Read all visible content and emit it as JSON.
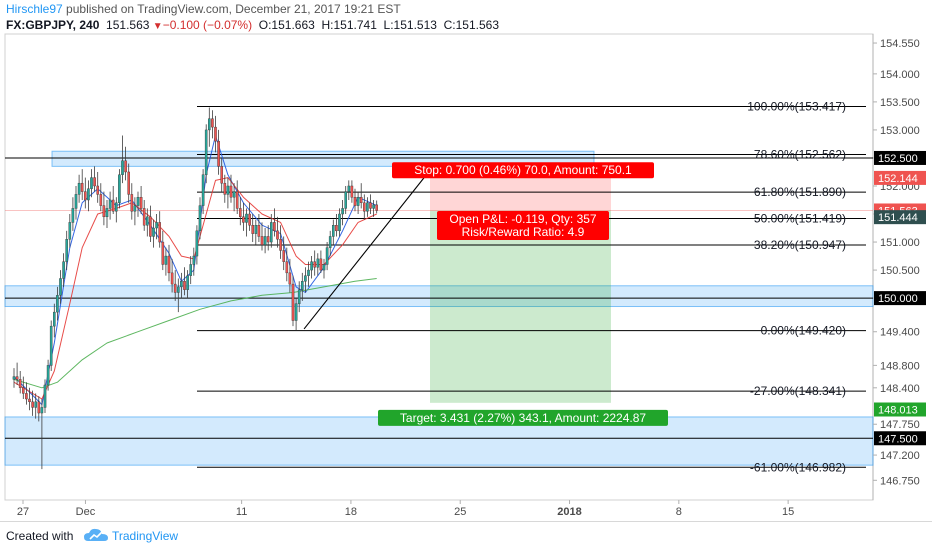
{
  "header": {
    "author": "Hirschle97",
    "published": "published on TradingView.com, December 21, 2017 19:21 EST",
    "symbol": "FX:GBPJPY, 240",
    "last": "151.563",
    "change": "−0.100 (−0.07%)",
    "open": "O:151.663",
    "high": "H:151.741",
    "low": "L:151.513",
    "close": "C:151.563"
  },
  "footer": {
    "created_with": "Created with",
    "brand": "TradingView"
  },
  "colors": {
    "bull": "#26a69a",
    "bear": "#ef5350",
    "fib": "#000000",
    "zone": "#2196f3",
    "ema_fast": "#1e55e0",
    "ema_slow": "#e53935",
    "sma": "#4caf50",
    "stop": "#ff0000",
    "target": "#21a52b"
  },
  "chart_data": {
    "type": "candlestick",
    "instrument": "FX:GBPJPY",
    "timeframe": "240",
    "ylim": [
      146.55,
      154.65
    ],
    "y_ticks": [
      "154.550",
      "154.000",
      "153.500",
      "153.000",
      "152.500",
      "152.000",
      "151.500",
      "151.000",
      "150.500",
      "150.000",
      "149.400",
      "148.800",
      "148.400",
      "147.750",
      "147.200",
      "146.750"
    ],
    "x_ticks": [
      "27",
      "Dec",
      "11",
      "18",
      "25",
      "2018",
      "8",
      "15"
    ],
    "x_tick_dates": [
      "2017-11-27",
      "2017-12-01",
      "2017-12-11",
      "2017-12-18",
      "2017-12-25",
      "2018-01-01",
      "2018-01-08",
      "2018-01-15"
    ],
    "fibonacci": [
      {
        "label": "100.00%(153.417)",
        "price": 153.417
      },
      {
        "label": "78.60%(152.562)",
        "price": 152.562
      },
      {
        "label": "61.80%(151.890)",
        "price": 151.89
      },
      {
        "label": "50.00%(151.419)",
        "price": 151.419
      },
      {
        "label": "38.20%(150.947)",
        "price": 150.947
      },
      {
        "label": "0.00%(149.420)",
        "price": 149.42
      },
      {
        "label": "-27.00%(148.341)",
        "price": 148.341
      },
      {
        "label": "-61.00%(146.982)",
        "price": 146.982
      }
    ],
    "zones": [
      [
        152.35,
        152.62
      ],
      [
        149.85,
        150.22
      ],
      [
        147.02,
        147.88
      ]
    ],
    "horizontal_lines": [
      152.5,
      150.0,
      147.5
    ],
    "price_labels": [
      {
        "text": "152.500",
        "price": 152.5,
        "color": "#000000"
      },
      {
        "text": "152.144",
        "price": 152.144,
        "color": "#ef5350"
      },
      {
        "text": "151.563",
        "price": 151.563,
        "color": "#ef5350"
      },
      {
        "text": "151.444",
        "price": 151.444,
        "color": "#2f4f4f"
      },
      {
        "text": "150.000",
        "price": 150.0,
        "color": "#000000"
      },
      {
        "text": "148.013",
        "price": 148.013,
        "color": "#21a52b"
      },
      {
        "text": "147.500",
        "price": 147.5,
        "color": "#000000"
      }
    ],
    "position": {
      "type": "long",
      "entry": 151.563,
      "stop": 152.263,
      "target": 148.132,
      "stop_label": "Stop: 0.700 (0.46%) 70.0, Amount: 750.1",
      "open_pl_label": "Open P&L: -0.119, Qty: 357",
      "rr_label": "Risk/Reward Ratio: 4.9",
      "target_label": "Target: 3.431 (2.27%) 343.1, Amount: 2224.87"
    },
    "trendline": {
      "from": [
        "2017-12-15",
        149.45
      ],
      "to": [
        "2017-12-22",
        152.2
      ]
    },
    "candles": [
      [
        "2017-11-24 08:00",
        148.55,
        148.75,
        148.4,
        148.6
      ],
      [
        "2017-11-24 12:00",
        148.6,
        148.85,
        148.45,
        148.55
      ],
      [
        "2017-11-24 16:00",
        148.55,
        148.7,
        148.3,
        148.4
      ],
      [
        "2017-11-26 20:00",
        148.4,
        148.6,
        148.2,
        148.3
      ],
      [
        "2017-11-27 00:00",
        148.3,
        148.5,
        148.1,
        148.2
      ],
      [
        "2017-11-27 04:00",
        148.2,
        148.4,
        148.0,
        148.15
      ],
      [
        "2017-11-27 08:00",
        148.15,
        148.35,
        147.9,
        148.05
      ],
      [
        "2017-11-27 12:00",
        148.05,
        148.3,
        147.85,
        148.15
      ],
      [
        "2017-11-27 16:00",
        148.15,
        148.25,
        147.8,
        147.95
      ],
      [
        "2017-11-27 20:00",
        147.95,
        148.2,
        146.95,
        148.05
      ],
      [
        "2017-11-28 00:00",
        148.05,
        148.55,
        147.95,
        148.45
      ],
      [
        "2017-11-28 04:00",
        148.45,
        148.9,
        148.35,
        148.8
      ],
      [
        "2017-11-28 08:00",
        148.8,
        149.6,
        148.7,
        149.5
      ],
      [
        "2017-11-28 12:00",
        149.5,
        149.9,
        149.3,
        149.75
      ],
      [
        "2017-11-28 16:00",
        149.75,
        150.2,
        149.6,
        150.05
      ],
      [
        "2017-11-28 20:00",
        150.05,
        150.5,
        149.9,
        150.35
      ],
      [
        "2017-11-29 00:00",
        150.35,
        150.8,
        150.2,
        150.65
      ],
      [
        "2017-11-29 04:00",
        150.65,
        151.2,
        150.5,
        151.05
      ],
      [
        "2017-11-29 08:00",
        151.05,
        151.5,
        150.9,
        151.35
      ],
      [
        "2017-11-29 12:00",
        151.35,
        151.8,
        151.2,
        151.6
      ],
      [
        "2017-11-29 16:00",
        151.6,
        152.0,
        151.4,
        151.85
      ],
      [
        "2017-11-29 20:00",
        151.85,
        152.2,
        151.7,
        152.05
      ],
      [
        "2017-11-30 00:00",
        152.05,
        152.3,
        151.75,
        151.9
      ],
      [
        "2017-11-30 04:00",
        151.9,
        152.15,
        151.6,
        151.75
      ],
      [
        "2017-11-30 08:00",
        151.75,
        152.1,
        151.55,
        151.95
      ],
      [
        "2017-11-30 12:00",
        151.95,
        152.3,
        151.8,
        152.15
      ],
      [
        "2017-11-30 16:00",
        152.15,
        152.35,
        151.9,
        152.0
      ],
      [
        "2017-11-30 20:00",
        152.0,
        152.25,
        151.7,
        151.85
      ],
      [
        "2017-12-01 00:00",
        151.85,
        152.05,
        151.55,
        151.65
      ],
      [
        "2017-12-01 04:00",
        151.65,
        151.9,
        151.3,
        151.45
      ],
      [
        "2017-12-01 08:00",
        151.45,
        151.75,
        151.25,
        151.6
      ],
      [
        "2017-12-01 12:00",
        151.6,
        151.9,
        151.4,
        151.75
      ],
      [
        "2017-12-01 16:00",
        151.75,
        152.0,
        151.5,
        151.55
      ],
      [
        "2017-12-01 20:00",
        151.55,
        151.8,
        151.35,
        151.7
      ],
      [
        "2017-12-03 20:00",
        151.7,
        152.3,
        151.6,
        152.2
      ],
      [
        "2017-12-04 00:00",
        152.2,
        152.9,
        152.05,
        152.45
      ],
      [
        "2017-12-04 04:00",
        152.45,
        152.7,
        152.1,
        152.25
      ],
      [
        "2017-12-04 08:00",
        152.25,
        152.4,
        151.7,
        151.85
      ],
      [
        "2017-12-04 12:00",
        151.85,
        152.05,
        151.4,
        151.55
      ],
      [
        "2017-12-04 16:00",
        151.55,
        151.8,
        151.3,
        151.65
      ],
      [
        "2017-12-04 20:00",
        151.65,
        151.9,
        151.45,
        151.8
      ],
      [
        "2017-12-05 00:00",
        151.8,
        152.0,
        151.5,
        151.6
      ],
      [
        "2017-12-05 04:00",
        151.6,
        151.75,
        151.2,
        151.3
      ],
      [
        "2017-12-05 08:00",
        151.3,
        151.6,
        151.1,
        151.45
      ],
      [
        "2017-12-05 12:00",
        151.45,
        151.65,
        151.0,
        151.1
      ],
      [
        "2017-12-05 16:00",
        151.1,
        151.4,
        150.9,
        151.25
      ],
      [
        "2017-12-05 20:00",
        151.25,
        151.5,
        151.05,
        151.35
      ],
      [
        "2017-12-06 00:00",
        151.35,
        151.55,
        150.9,
        151.0
      ],
      [
        "2017-12-06 04:00",
        151.0,
        151.2,
        150.5,
        150.6
      ],
      [
        "2017-12-06 08:00",
        150.6,
        150.9,
        150.4,
        150.75
      ],
      [
        "2017-12-06 12:00",
        150.75,
        150.95,
        150.3,
        150.45
      ],
      [
        "2017-12-06 16:00",
        150.45,
        150.7,
        150.1,
        150.25
      ],
      [
        "2017-12-06 20:00",
        150.25,
        150.5,
        149.95,
        150.1
      ],
      [
        "2017-12-07 00:00",
        150.1,
        150.35,
        149.75,
        150.2
      ],
      [
        "2017-12-07 04:00",
        150.2,
        150.45,
        150.0,
        150.3
      ],
      [
        "2017-12-07 08:00",
        150.3,
        150.55,
        150.05,
        150.15
      ],
      [
        "2017-12-07 12:00",
        150.15,
        150.5,
        150.0,
        150.4
      ],
      [
        "2017-12-07 16:00",
        150.4,
        150.75,
        150.25,
        150.6
      ],
      [
        "2017-12-07 20:00",
        150.6,
        150.9,
        150.4,
        150.75
      ],
      [
        "2017-12-08 00:00",
        150.75,
        151.3,
        150.6,
        151.2
      ],
      [
        "2017-12-08 04:00",
        151.2,
        151.8,
        151.05,
        151.65
      ],
      [
        "2017-12-08 08:00",
        151.65,
        152.3,
        151.5,
        152.2
      ],
      [
        "2017-12-08 12:00",
        152.2,
        153.1,
        152.05,
        153.0
      ],
      [
        "2017-12-08 16:00",
        153.0,
        153.4,
        152.7,
        153.2
      ],
      [
        "2017-12-08 20:00",
        153.2,
        153.35,
        152.85,
        153.05
      ],
      [
        "2017-12-10 20:00",
        153.05,
        153.25,
        152.6,
        152.8
      ],
      [
        "2017-12-11 00:00",
        152.8,
        153.0,
        152.2,
        152.35
      ],
      [
        "2017-12-11 04:00",
        152.35,
        152.5,
        151.9,
        152.05
      ],
      [
        "2017-12-11 08:00",
        152.05,
        152.2,
        151.7,
        151.85
      ],
      [
        "2017-12-11 12:00",
        151.85,
        152.15,
        151.6,
        152.0
      ],
      [
        "2017-12-11 16:00",
        152.0,
        152.2,
        151.7,
        151.8
      ],
      [
        "2017-12-11 20:00",
        151.8,
        152.05,
        151.55,
        151.9
      ],
      [
        "2017-12-12 00:00",
        151.9,
        152.1,
        151.5,
        151.6
      ],
      [
        "2017-12-12 04:00",
        151.6,
        151.8,
        151.3,
        151.45
      ],
      [
        "2017-12-12 08:00",
        151.45,
        151.7,
        151.2,
        151.35
      ],
      [
        "2017-12-12 12:00",
        151.35,
        151.6,
        151.1,
        151.5
      ],
      [
        "2017-12-12 16:00",
        151.5,
        151.7,
        151.2,
        151.3
      ],
      [
        "2017-12-12 20:00",
        151.3,
        151.5,
        151.0,
        151.15
      ],
      [
        "2017-12-13 00:00",
        151.15,
        151.4,
        150.95,
        151.3
      ],
      [
        "2017-12-13 04:00",
        151.3,
        151.5,
        151.0,
        151.1
      ],
      [
        "2017-12-13 08:00",
        151.1,
        151.35,
        150.85,
        150.95
      ],
      [
        "2017-12-13 12:00",
        150.95,
        151.25,
        150.8,
        151.1
      ],
      [
        "2017-12-13 16:00",
        151.1,
        151.3,
        150.85,
        151.0
      ],
      [
        "2017-12-13 20:00",
        151.0,
        151.5,
        150.9,
        151.35
      ],
      [
        "2017-12-14 00:00",
        151.35,
        151.6,
        151.1,
        151.2
      ],
      [
        "2017-12-14 04:00",
        151.2,
        151.45,
        150.9,
        151.05
      ],
      [
        "2017-12-14 08:00",
        151.05,
        151.3,
        150.7,
        150.85
      ],
      [
        "2017-12-14 12:00",
        150.85,
        151.1,
        150.5,
        150.65
      ],
      [
        "2017-12-14 16:00",
        150.65,
        150.9,
        150.3,
        150.45
      ],
      [
        "2017-12-14 20:00",
        150.45,
        150.7,
        150.1,
        150.25
      ],
      [
        "2017-12-15 00:00",
        150.25,
        150.4,
        149.5,
        149.6
      ],
      [
        "2017-12-15 04:00",
        149.6,
        150.0,
        149.42,
        149.9
      ],
      [
        "2017-12-15 08:00",
        149.9,
        150.3,
        149.75,
        150.15
      ],
      [
        "2017-12-15 12:00",
        150.15,
        150.45,
        149.95,
        150.3
      ],
      [
        "2017-12-15 16:00",
        150.3,
        150.55,
        150.1,
        150.4
      ],
      [
        "2017-12-15 20:00",
        150.4,
        150.65,
        150.2,
        150.5
      ],
      [
        "2017-12-17 20:00",
        150.5,
        150.75,
        150.35,
        150.65
      ],
      [
        "2017-12-18 00:00",
        150.65,
        150.85,
        150.4,
        150.55
      ],
      [
        "2017-12-18 04:00",
        150.55,
        150.8,
        150.4,
        150.7
      ],
      [
        "2017-12-18 08:00",
        150.7,
        150.85,
        150.45,
        150.5
      ],
      [
        "2017-12-18 12:00",
        150.5,
        150.7,
        150.35,
        150.6
      ],
      [
        "2017-12-18 16:00",
        150.6,
        151.0,
        150.5,
        150.9
      ],
      [
        "2017-12-18 20:00",
        150.9,
        151.2,
        150.75,
        151.1
      ],
      [
        "2017-12-19 00:00",
        151.1,
        151.4,
        150.95,
        151.3
      ],
      [
        "2017-12-19 04:00",
        151.3,
        151.5,
        151.1,
        151.2
      ],
      [
        "2017-12-19 08:00",
        151.2,
        151.6,
        151.1,
        151.5
      ],
      [
        "2017-12-19 12:00",
        151.5,
        151.75,
        151.3,
        151.6
      ],
      [
        "2017-12-19 16:00",
        151.6,
        152.0,
        151.5,
        151.9
      ],
      [
        "2017-12-19 20:00",
        151.9,
        152.1,
        151.75,
        152.0
      ],
      [
        "2017-12-20 00:00",
        152.0,
        152.1,
        151.7,
        151.8
      ],
      [
        "2017-12-20 04:00",
        151.8,
        151.95,
        151.55,
        151.65
      ],
      [
        "2017-12-20 08:00",
        151.65,
        151.9,
        151.5,
        151.8
      ],
      [
        "2017-12-20 12:00",
        151.8,
        152.05,
        151.6,
        151.7
      ],
      [
        "2017-12-20 16:00",
        151.7,
        151.85,
        151.4,
        151.55
      ],
      [
        "2017-12-20 20:00",
        151.55,
        151.8,
        151.45,
        151.7
      ],
      [
        "2017-12-21 00:00",
        151.7,
        151.85,
        151.5,
        151.6
      ],
      [
        "2017-12-21 04:00",
        151.6,
        151.75,
        151.45,
        151.663
      ],
      [
        "2017-12-21 08:00",
        151.663,
        151.741,
        151.513,
        151.563
      ]
    ],
    "indicators": [
      {
        "type": "ema_fast",
        "color": "#1e55e0",
        "values": [
          [
            0,
            148.6
          ],
          [
            9,
            148.1
          ],
          [
            13,
            149.2
          ],
          [
            18,
            150.9
          ],
          [
            22,
            151.7
          ],
          [
            27,
            151.95
          ],
          [
            33,
            151.65
          ],
          [
            38,
            151.75
          ],
          [
            44,
            151.3
          ],
          [
            50,
            150.8
          ],
          [
            54,
            150.3
          ],
          [
            58,
            150.5
          ],
          [
            62,
            152.2
          ],
          [
            65,
            152.9
          ],
          [
            69,
            152.2
          ],
          [
            74,
            151.7
          ],
          [
            80,
            151.3
          ],
          [
            86,
            151.15
          ],
          [
            91,
            150.2
          ],
          [
            94,
            150.1
          ],
          [
            100,
            150.55
          ],
          [
            106,
            151.2
          ],
          [
            111,
            151.8
          ],
          [
            117,
            151.65
          ]
        ]
      },
      {
        "type": "ema_slow",
        "color": "#e53935",
        "values": [
          [
            0,
            148.5
          ],
          [
            9,
            148.2
          ],
          [
            13,
            148.7
          ],
          [
            18,
            149.9
          ],
          [
            22,
            150.9
          ],
          [
            27,
            151.5
          ],
          [
            33,
            151.6
          ],
          [
            38,
            151.7
          ],
          [
            44,
            151.45
          ],
          [
            50,
            151.1
          ],
          [
            54,
            150.75
          ],
          [
            58,
            150.7
          ],
          [
            62,
            151.5
          ],
          [
            65,
            152.1
          ],
          [
            69,
            152.15
          ],
          [
            74,
            151.8
          ],
          [
            80,
            151.5
          ],
          [
            86,
            151.35
          ],
          [
            91,
            150.75
          ],
          [
            94,
            150.6
          ],
          [
            100,
            150.6
          ],
          [
            106,
            150.95
          ],
          [
            111,
            151.35
          ],
          [
            117,
            151.5
          ]
        ]
      },
      {
        "type": "sma",
        "color": "#4caf50",
        "values": [
          [
            0,
            148.55
          ],
          [
            9,
            148.4
          ],
          [
            14,
            148.5
          ],
          [
            22,
            148.9
          ],
          [
            30,
            149.2
          ],
          [
            40,
            149.4
          ],
          [
            50,
            149.6
          ],
          [
            60,
            149.8
          ],
          [
            70,
            149.95
          ],
          [
            80,
            150.05
          ],
          [
            90,
            150.1
          ],
          [
            100,
            150.2
          ],
          [
            110,
            150.3
          ],
          [
            117,
            150.35
          ]
        ]
      }
    ]
  }
}
